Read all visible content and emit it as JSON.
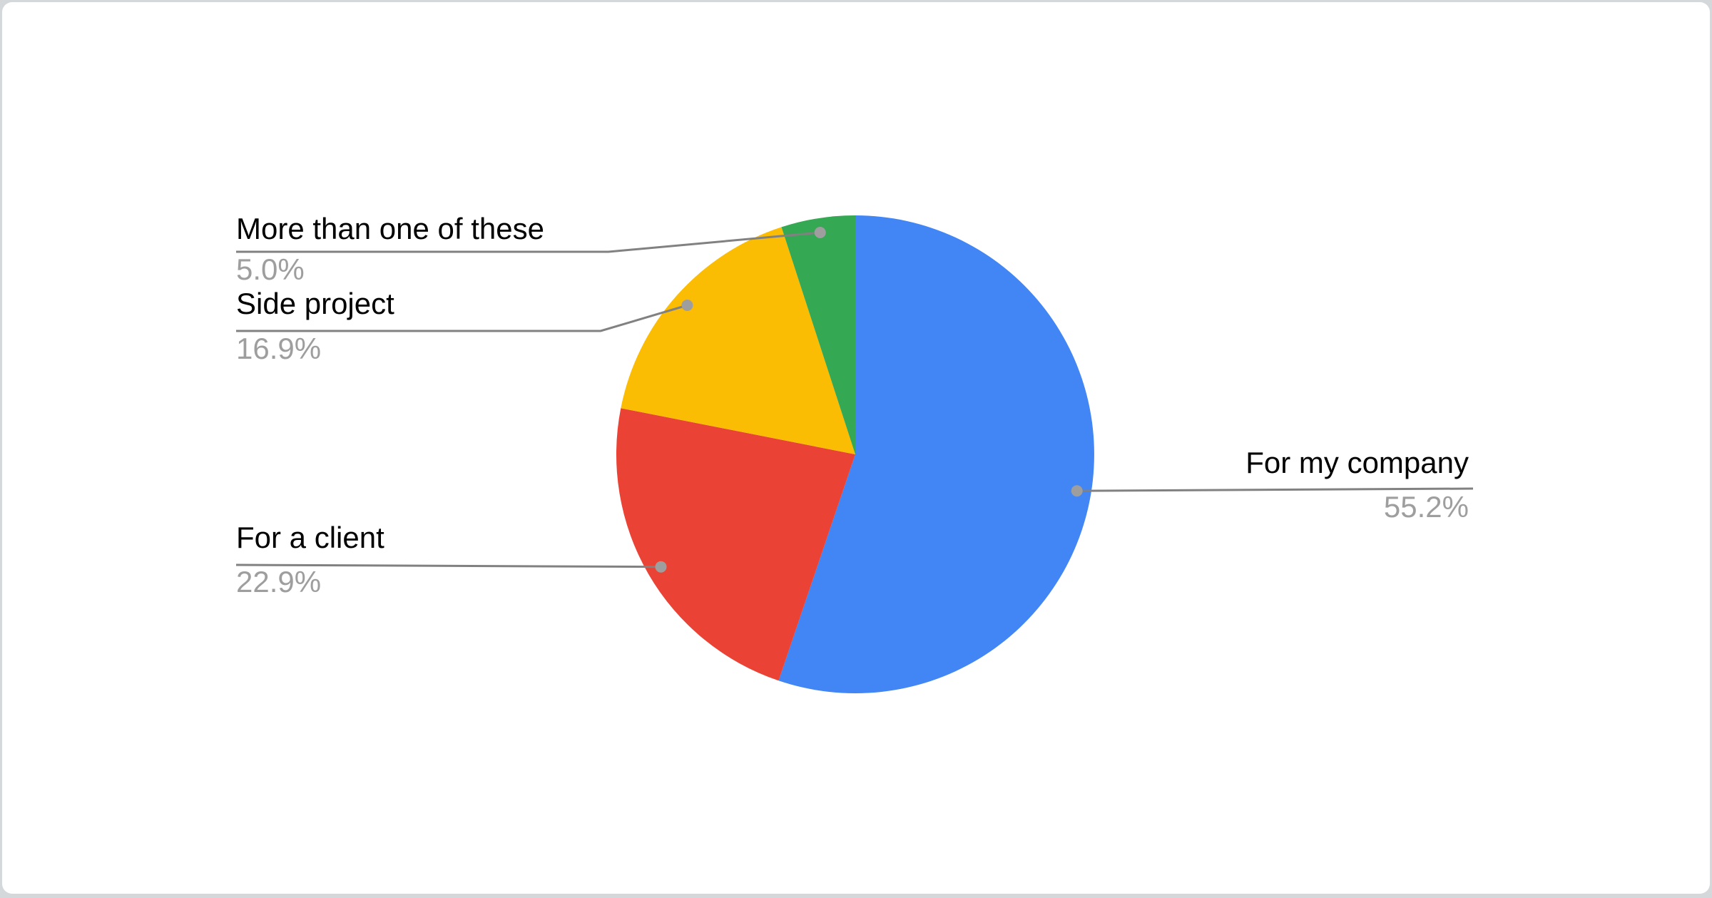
{
  "page": {
    "background_color": "#d5d8db",
    "card_background": "#ffffff"
  },
  "chart_data": {
    "type": "pie",
    "title": "",
    "legend_position": "labeled-callouts",
    "direction": "clockwise",
    "start_angle_deg": 0,
    "label_color": "#000000",
    "pct_color": "#9e9e9e",
    "leader_line_color": "#818181",
    "dot_color": "#9e9e9e",
    "slices": [
      {
        "label": "For my company",
        "value": 55.2,
        "pct_label": "55.2%",
        "color": "#4285F4"
      },
      {
        "label": "For a client",
        "value": 22.9,
        "pct_label": "22.9%",
        "color": "#EA4335"
      },
      {
        "label": "Side project",
        "value": 16.9,
        "pct_label": "16.9%",
        "color": "#FBBC04"
      },
      {
        "label": "More than one of these",
        "value": 5.0,
        "pct_label": "5.0%",
        "color": "#34A853"
      }
    ]
  }
}
